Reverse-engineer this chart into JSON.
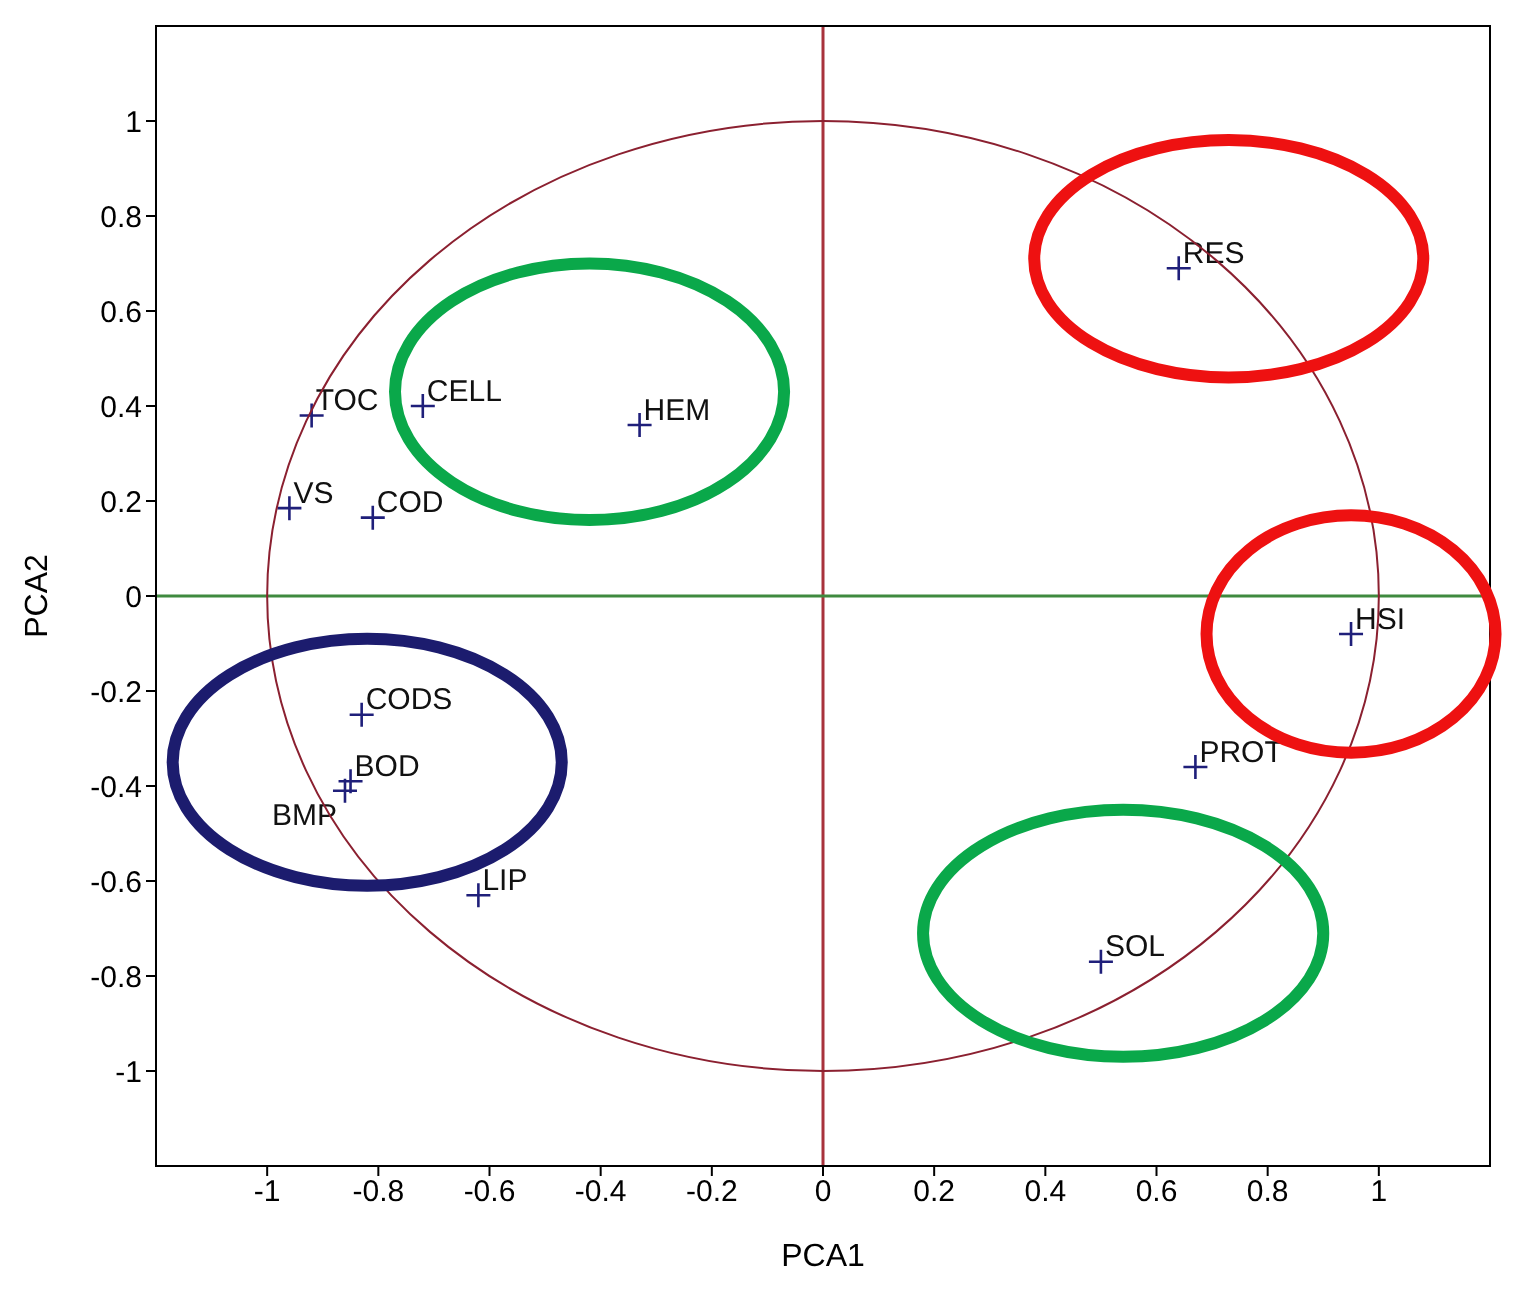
{
  "chart_data": {
    "type": "scatter",
    "xlabel": "PCA1",
    "ylabel": "PCA2",
    "xlim": [
      -1.2,
      1.2
    ],
    "ylim": [
      -1.2,
      1.2
    ],
    "xticks": [
      -1,
      -0.8,
      -0.6,
      -0.4,
      -0.2,
      0,
      0.2,
      0.4,
      0.6,
      0.8,
      1
    ],
    "yticks": [
      -1,
      -0.8,
      -0.6,
      -0.4,
      -0.2,
      0,
      0.2,
      0.4,
      0.6,
      0.8,
      1
    ],
    "grid": false,
    "legend": false,
    "marker": "cross",
    "series": [
      {
        "color": "#1f1f7a",
        "x": [
          -0.92,
          -0.72,
          -0.33,
          -0.96,
          -0.81,
          -0.83,
          -0.85,
          -0.86,
          -0.62,
          0.64,
          0.95,
          0.67,
          0.5
        ],
        "values": [
          0.38,
          0.4,
          0.36,
          0.185,
          0.165,
          -0.25,
          -0.39,
          -0.41,
          -0.63,
          0.69,
          -0.08,
          -0.36,
          -0.77
        ]
      }
    ],
    "annotations": [
      {
        "text": "TOC",
        "x": -0.92,
        "y": 0.38
      },
      {
        "text": "CELL",
        "x": -0.72,
        "y": 0.4
      },
      {
        "text": "HEM",
        "x": -0.33,
        "y": 0.36
      },
      {
        "text": "VS",
        "x": -0.96,
        "y": 0.185
      },
      {
        "text": "COD",
        "x": -0.81,
        "y": 0.165
      },
      {
        "text": "CODS",
        "x": -0.83,
        "y": -0.25
      },
      {
        "text": "BOD",
        "x": -0.85,
        "y": -0.39
      },
      {
        "text": "BMP",
        "x": -0.86,
        "y": -0.41
      },
      {
        "text": "LIP",
        "x": -0.62,
        "y": -0.63
      },
      {
        "text": "RES",
        "x": 0.64,
        "y": 0.69
      },
      {
        "text": "HSI",
        "x": 0.95,
        "y": -0.08
      },
      {
        "text": "PROT",
        "x": 0.67,
        "y": -0.36
      },
      {
        "text": "SOL",
        "x": 0.5,
        "y": -0.77
      }
    ],
    "ref_lines": [
      {
        "axis": "x",
        "value": 0,
        "color": "#a8323c"
      },
      {
        "axis": "y",
        "value": 0,
        "color": "#3f8a3f"
      }
    ]
  }
}
